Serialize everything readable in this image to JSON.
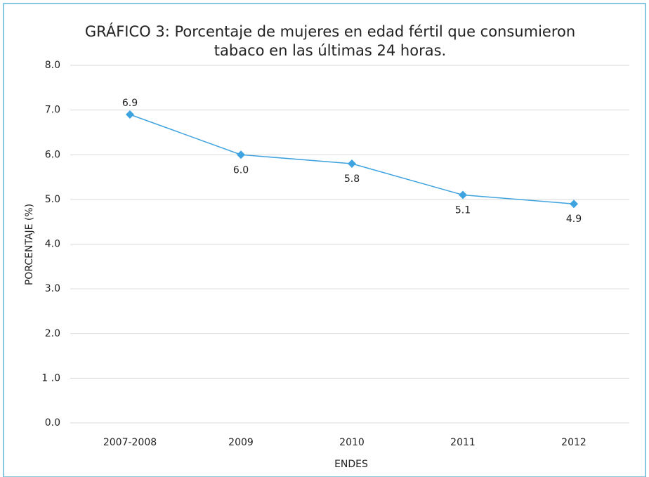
{
  "chart_data": {
    "type": "line",
    "title": [
      "GRÁFICO 3: Porcentaje de mujeres en edad fértil que consumieron",
      "tabaco en las últimas 24 horas."
    ],
    "x_label": "ENDES",
    "y_label": "PORCENTAJE (%)",
    "categories": [
      "2007-2008",
      "2009",
      "2010",
      "2011",
      "2012"
    ],
    "series": [
      {
        "name": "Porcentaje",
        "color": "#3fa3df",
        "values": [
          6.9,
          6.0,
          5.8,
          5.1,
          4.9
        ],
        "value_labels": [
          "6.9",
          "6.0",
          "5.8",
          "5.1",
          "4.9"
        ]
      }
    ],
    "ylim": [
      0,
      8
    ],
    "yticks": [
      {
        "value": 0,
        "label": "0.0"
      },
      {
        "value": 1,
        "label": "1 .0"
      },
      {
        "value": 2,
        "label": "2.0"
      },
      {
        "value": 3,
        "label": "3.0"
      },
      {
        "value": 4,
        "label": "4.0"
      },
      {
        "value": 5,
        "label": "5.0"
      },
      {
        "value": 6,
        "label": "6.0"
      },
      {
        "value": 7,
        "label": "7.0"
      },
      {
        "value": 8,
        "label": "8.0"
      }
    ],
    "grid": true
  }
}
